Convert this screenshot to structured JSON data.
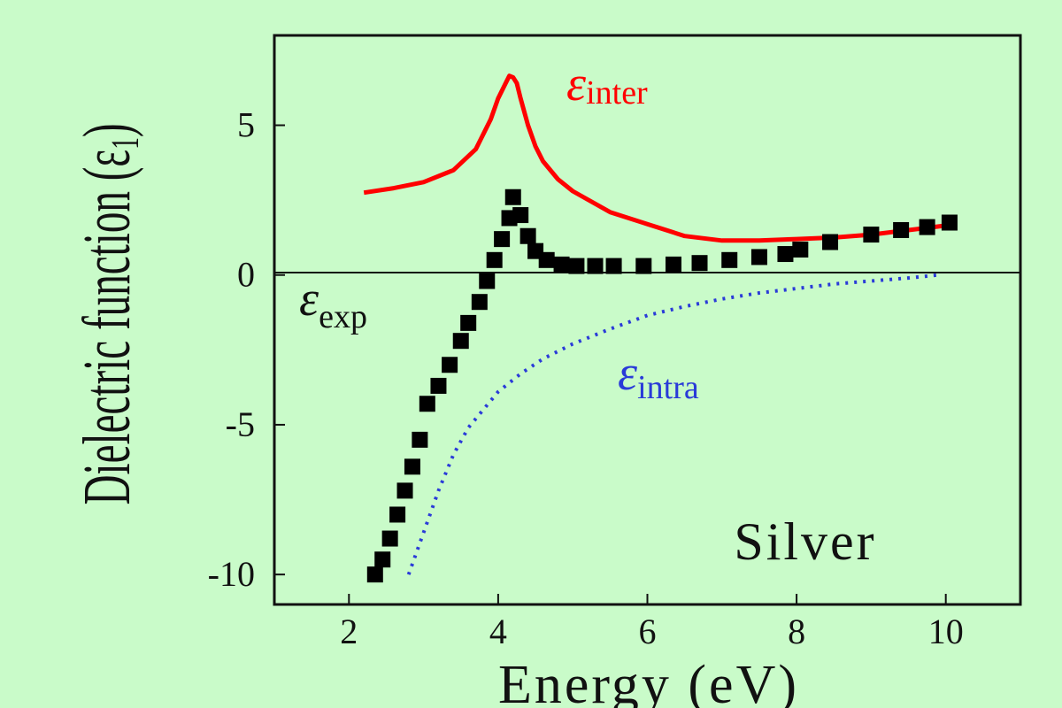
{
  "chart_data": {
    "type": "line",
    "xlabel": "Energy (eV)",
    "ylabel": "Dielectric function (ε",
    "ylabel_subscript": "1",
    "ylabel_close": ")",
    "annotation": "Silver",
    "xlim": [
      1.0,
      11.0
    ],
    "ylim": [
      -11.0,
      8.0
    ],
    "x_ticks": [
      2,
      4,
      6,
      8,
      10
    ],
    "y_ticks": [
      5,
      0,
      -5,
      -10
    ],
    "x_tick_labels": [
      "2",
      "4",
      "6",
      "8",
      "10"
    ],
    "y_tick_labels": [
      "5",
      "0",
      "-5",
      "-10"
    ],
    "grid": false,
    "zero_line": true,
    "series": [
      {
        "name": "ε",
        "subscript": "inter",
        "style": "solid",
        "color": "#ff0000",
        "x": [
          2.2,
          2.6,
          3.0,
          3.4,
          3.7,
          3.9,
          4.0,
          4.1,
          4.15,
          4.2,
          4.25,
          4.3,
          4.4,
          4.5,
          4.6,
          4.8,
          5.0,
          5.5,
          6.0,
          6.5,
          7.0,
          7.5,
          8.0,
          8.5,
          9.0,
          9.5,
          10.0
        ],
        "y": [
          2.75,
          2.9,
          3.1,
          3.5,
          4.2,
          5.2,
          5.9,
          6.4,
          6.65,
          6.6,
          6.4,
          5.9,
          5.0,
          4.3,
          3.8,
          3.2,
          2.8,
          2.1,
          1.7,
          1.3,
          1.15,
          1.15,
          1.2,
          1.25,
          1.35,
          1.5,
          1.65
        ]
      },
      {
        "name": "ε",
        "subscript": "exp",
        "style": "square-markers",
        "color": "#000000",
        "x": [
          2.35,
          2.45,
          2.55,
          2.65,
          2.75,
          2.85,
          2.95,
          3.05,
          3.2,
          3.35,
          3.5,
          3.6,
          3.75,
          3.85,
          3.95,
          4.05,
          4.15,
          4.2,
          4.3,
          4.4,
          4.5,
          4.65,
          4.85,
          5.05,
          5.3,
          5.55,
          5.95,
          6.35,
          6.7,
          7.1,
          7.5,
          7.85,
          8.05,
          8.45,
          9.0,
          9.4,
          9.75,
          10.05
        ],
        "y": [
          -10.0,
          -9.5,
          -8.8,
          -8.0,
          -7.2,
          -6.4,
          -5.5,
          -4.3,
          -3.7,
          -3.0,
          -2.2,
          -1.6,
          -0.9,
          -0.2,
          0.5,
          1.2,
          1.9,
          2.6,
          2.0,
          1.3,
          0.8,
          0.5,
          0.35,
          0.3,
          0.3,
          0.3,
          0.3,
          0.35,
          0.4,
          0.5,
          0.6,
          0.7,
          0.85,
          1.1,
          1.35,
          1.5,
          1.6,
          1.75
        ]
      },
      {
        "name": "ε",
        "subscript": "intra",
        "style": "dotted",
        "color": "#2a3bd8",
        "x": [
          2.8,
          3.0,
          3.2,
          3.4,
          3.6,
          3.8,
          4.0,
          4.3,
          4.6,
          5.0,
          5.5,
          6.0,
          6.5,
          7.0,
          7.5,
          8.0,
          8.5,
          9.0,
          9.5,
          9.9
        ],
        "y": [
          -10.0,
          -8.6,
          -7.2,
          -6.0,
          -5.1,
          -4.5,
          -3.9,
          -3.3,
          -2.8,
          -2.3,
          -1.8,
          -1.35,
          -1.05,
          -0.8,
          -0.6,
          -0.45,
          -0.3,
          -0.2,
          -0.1,
          0.0
        ]
      }
    ]
  }
}
